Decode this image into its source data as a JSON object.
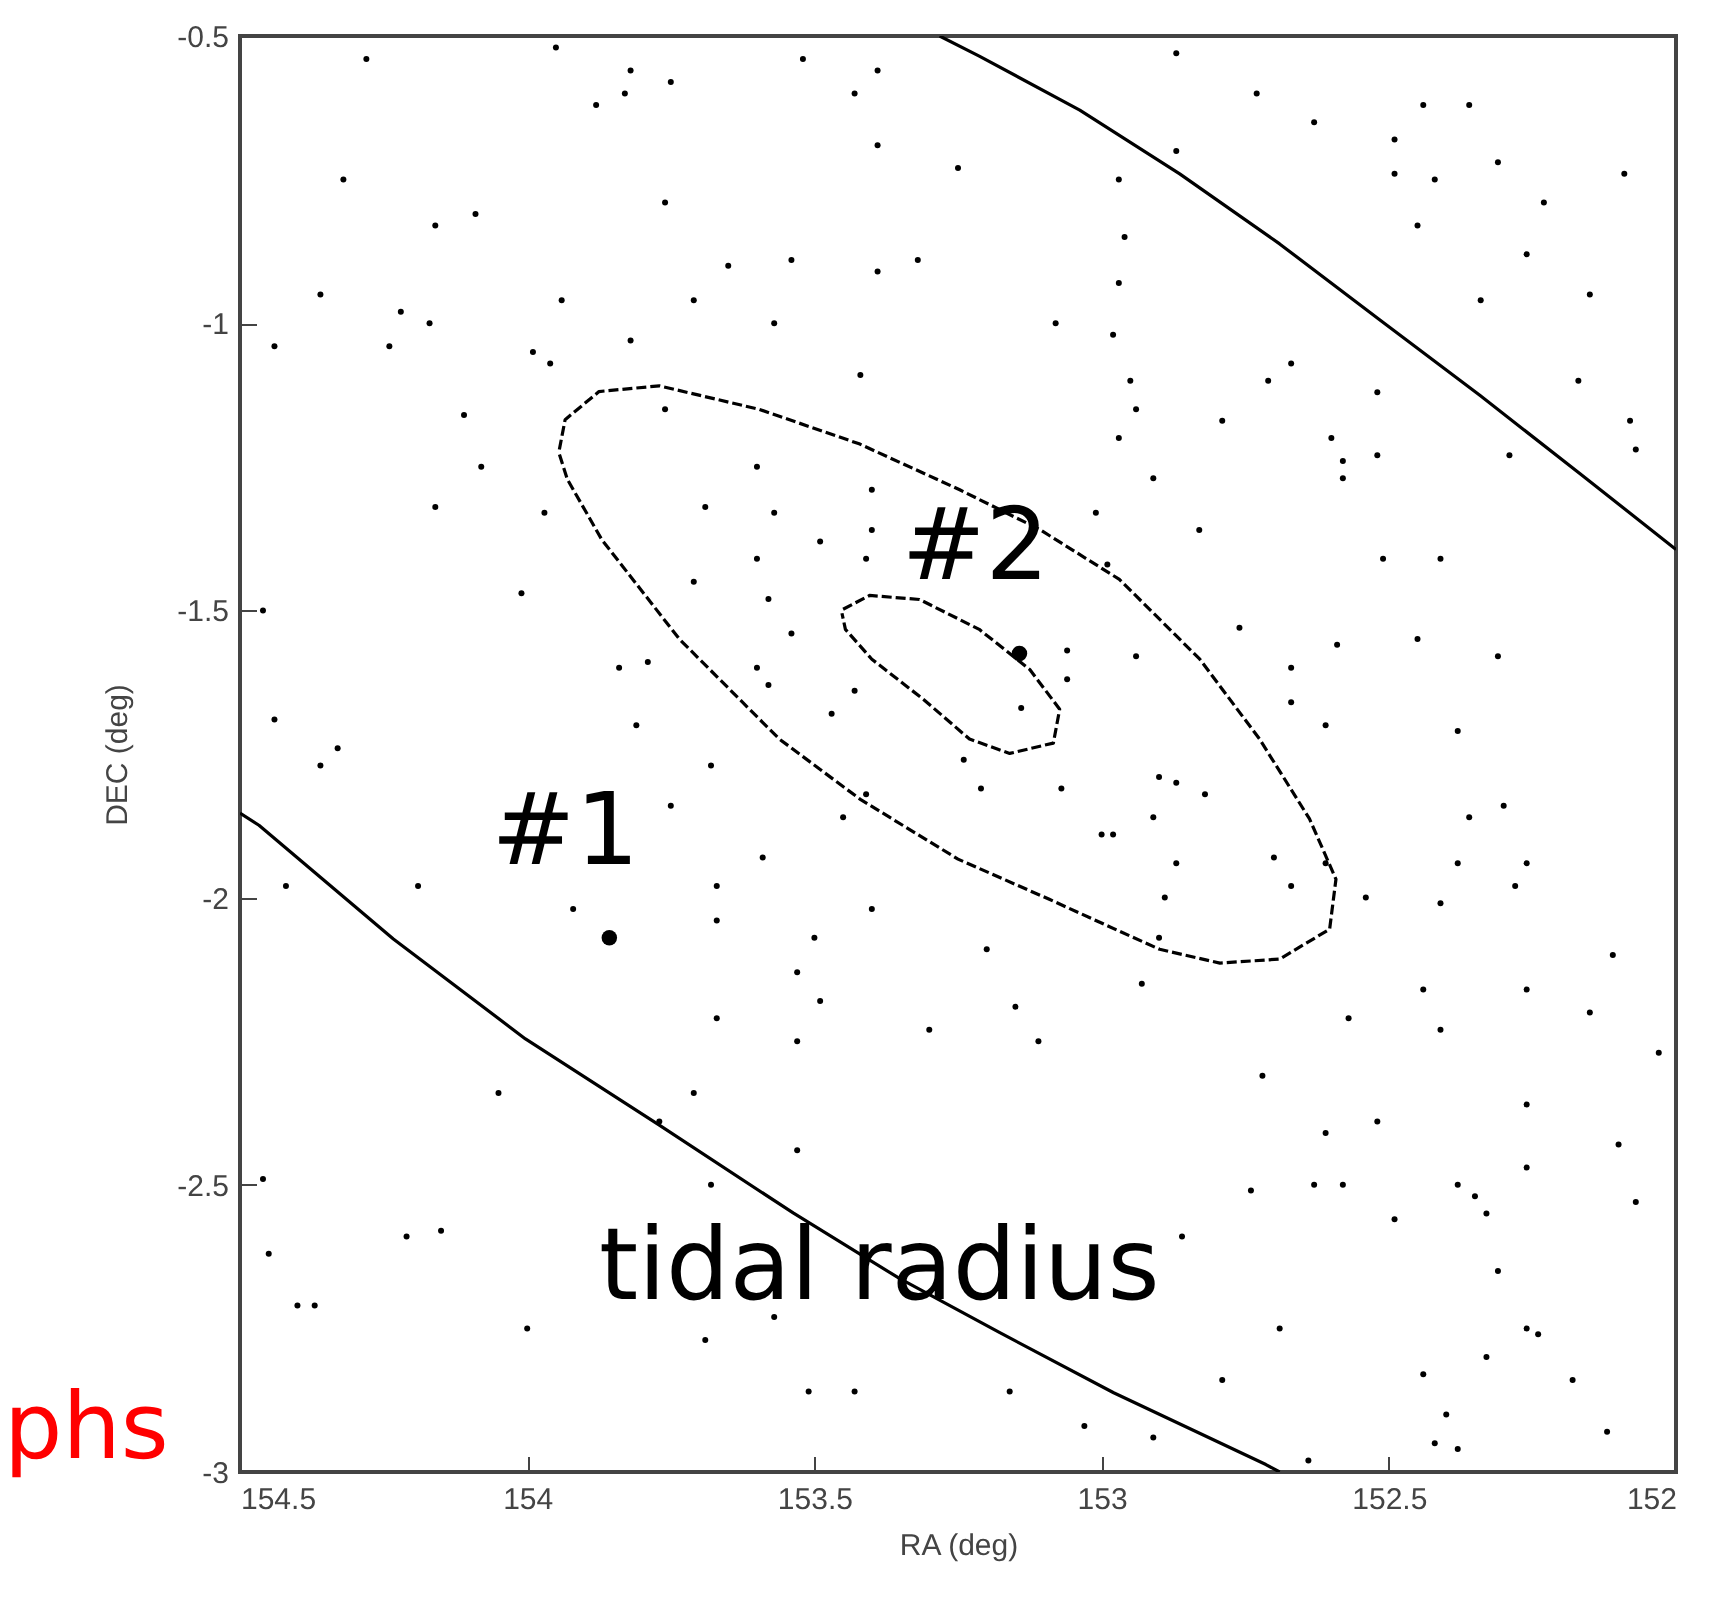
{
  "chart_data": {
    "type": "scatter",
    "xlabel": "RA (deg)",
    "ylabel": "DEC (deg)",
    "xlim": [
      154.5,
      152
    ],
    "ylim": [
      -3,
      -0.5
    ],
    "xticks": [
      154.5,
      154,
      153.5,
      153,
      152.5,
      152
    ],
    "yticks": [
      -3,
      -2.5,
      -2,
      -1.5,
      -1,
      -0.5
    ],
    "series": [
      {
        "marker": "circle",
        "color": "#000000",
        "x": [
          154.28,
          153.95,
          153.52,
          153.82,
          153.83,
          153.88,
          153.75,
          153.43,
          153.39,
          153.39,
          153.25,
          154.32,
          154.09,
          154.16,
          153.76,
          153.54,
          153.39,
          153.32,
          153.65,
          153.71,
          153.94,
          154.36,
          154.22,
          154.17,
          154.24,
          154.44,
          153.99,
          153.96,
          153.82,
          153.57,
          153.42,
          153.76,
          154.11,
          154.08,
          154.16,
          153.97,
          153.6,
          153.69,
          153.57,
          153.4,
          153.4,
          153.49,
          153.6,
          153.71,
          153.58,
          153.41,
          154.01,
          154.46,
          153.54,
          153.6,
          153.58,
          153.79,
          153.84,
          153.81,
          154.44,
          153.47,
          153.43,
          152.87,
          152.73,
          152.63,
          152.44,
          152.36,
          152.87,
          152.97,
          152.49,
          152.49,
          152.42,
          152.31,
          152.09,
          152.23,
          152.96,
          152.45,
          152.26,
          152.97,
          152.34,
          152.15,
          153.08,
          152.98,
          152.71,
          152.67,
          152.95,
          152.52,
          152.17,
          152.94,
          152.79,
          152.97,
          152.6,
          152.58,
          152.52,
          152.58,
          152.29,
          152.08,
          152.07,
          152.91,
          153.01,
          152.83,
          152.99,
          152.51,
          152.41,
          152.76,
          152.59,
          152.45,
          152.31,
          152.94,
          152.67,
          152.67,
          152.61,
          152.38,
          153.06,
          153.06,
          153.14,
          154.36,
          154.33,
          153.68,
          153.75,
          153.24,
          153.21,
          153.41,
          153.45,
          154.42,
          154.19,
          153.92,
          153.59,
          153.67,
          153.67,
          153.4,
          153.5,
          153.53,
          153.49,
          153.2,
          153.3,
          153.67,
          153.53,
          154.05,
          153.71,
          153.77,
          153.53,
          153.68,
          154.46,
          154.15,
          154.21,
          154.45,
          154.4,
          154.37,
          154.0,
          153.69,
          153.57,
          153.51,
          153.43,
          153.07,
          152.87,
          152.82,
          152.9,
          152.91,
          153.0,
          152.98,
          152.87,
          152.89,
          152.7,
          152.67,
          152.61,
          152.54,
          152.36,
          152.3,
          152.38,
          152.26,
          152.28,
          152.41,
          152.9,
          152.93,
          153.15,
          153.11,
          152.11,
          152.44,
          152.26,
          152.41,
          152.15,
          152.57,
          152.72,
          152.03,
          152.26,
          152.52,
          152.61,
          152.1,
          152.26,
          152.74,
          152.63,
          152.58,
          152.38,
          152.35,
          152.33,
          152.49,
          152.07,
          152.86,
          152.31,
          152.26,
          152.24,
          152.69,
          152.33,
          152.18,
          152.44,
          152.79,
          152.4,
          153.16,
          153.03,
          152.91,
          152.64,
          152.42,
          152.38,
          152.12
        ],
        "values": [
          -0.54,
          -0.52,
          -0.54,
          -0.56,
          -0.6,
          -0.62,
          -0.58,
          -0.6,
          -0.56,
          -0.69,
          -0.73,
          -0.75,
          -0.81,
          -0.83,
          -0.79,
          -0.89,
          -0.91,
          -0.89,
          -0.9,
          -0.96,
          -0.96,
          -0.95,
          -0.98,
          -1.0,
          -1.04,
          -1.04,
          -1.05,
          -1.07,
          -1.03,
          -1.0,
          -1.09,
          -1.15,
          -1.16,
          -1.25,
          -1.32,
          -1.33,
          -1.25,
          -1.32,
          -1.33,
          -1.29,
          -1.36,
          -1.38,
          -1.41,
          -1.45,
          -1.48,
          -1.41,
          -1.47,
          -1.5,
          -1.54,
          -1.6,
          -1.63,
          -1.59,
          -1.6,
          -1.7,
          -1.69,
          -1.68,
          -1.64,
          -0.53,
          -0.6,
          -0.65,
          -0.62,
          -0.62,
          -0.7,
          -0.75,
          -0.68,
          -0.74,
          -0.75,
          -0.72,
          -0.74,
          -0.79,
          -0.85,
          -0.83,
          -0.88,
          -0.93,
          -0.96,
          -0.95,
          -1.0,
          -1.02,
          -1.1,
          -1.07,
          -1.1,
          -1.12,
          -1.1,
          -1.15,
          -1.17,
          -1.2,
          -1.2,
          -1.24,
          -1.23,
          -1.27,
          -1.23,
          -1.17,
          -1.22,
          -1.27,
          -1.33,
          -1.36,
          -1.42,
          -1.41,
          -1.41,
          -1.53,
          -1.56,
          -1.55,
          -1.58,
          -1.58,
          -1.6,
          -1.66,
          -1.7,
          -1.71,
          -1.57,
          -1.62,
          -1.67,
          -1.77,
          -1.74,
          -1.77,
          -1.84,
          -1.76,
          -1.81,
          -1.82,
          -1.86,
          -1.98,
          -1.98,
          -2.02,
          -1.93,
          -1.98,
          -2.04,
          -2.02,
          -2.07,
          -2.13,
          -2.18,
          -2.09,
          -2.23,
          -2.21,
          -2.25,
          -2.34,
          -2.34,
          -2.39,
          -2.44,
          -2.5,
          -2.49,
          -2.58,
          -2.59,
          -2.62,
          -2.71,
          -2.71,
          -2.75,
          -2.77,
          -2.73,
          -2.86,
          -2.86,
          -1.81,
          -1.8,
          -1.82,
          -1.79,
          -1.86,
          -1.89,
          -1.89,
          -1.94,
          -2.0,
          -1.93,
          -1.98,
          -1.94,
          -2.0,
          -1.86,
          -1.84,
          -1.94,
          -1.94,
          -1.98,
          -2.01,
          -2.07,
          -2.15,
          -2.19,
          -2.25,
          -2.1,
          -2.16,
          -2.16,
          -2.23,
          -2.2,
          -2.21,
          -2.31,
          -2.27,
          -2.36,
          -2.39,
          -2.41,
          -2.43,
          -2.47,
          -2.51,
          -2.5,
          -2.5,
          -2.5,
          -2.52,
          -2.55,
          -2.56,
          -2.53,
          -2.59,
          -2.65,
          -2.75,
          -2.76,
          -2.75,
          -2.8,
          -2.84,
          -2.83,
          -2.84,
          -2.9,
          -2.86,
          -2.92,
          -2.94,
          -2.98,
          -2.95,
          -2.96,
          -2.93
        ]
      },
      {
        "type": "scatter",
        "marker": "circle",
        "color": "#000000",
        "x": [
          153.857,
          153.143
        ],
        "values": [
          -2.07,
          -1.575
        ]
      },
      {
        "type": "line",
        "marker": "none",
        "line_style": "solid",
        "color": "#000000",
        "x": [
          153.282,
          153.213,
          153.038,
          152.864,
          152.69,
          152.516,
          152.341,
          152.167,
          152.0
        ],
        "values": [
          -0.5,
          -0.535,
          -0.629,
          -0.74,
          -0.862,
          -0.994,
          -1.126,
          -1.262,
          -1.394
        ]
      },
      {
        "type": "line",
        "marker": "none",
        "line_style": "solid",
        "color": "#000000",
        "x": [
          154.5,
          154.467,
          154.233,
          154.003,
          153.77,
          153.537,
          153.352,
          153.178,
          152.979,
          152.714,
          152.69
        ],
        "values": [
          -1.853,
          -1.874,
          -2.072,
          -2.246,
          -2.396,
          -2.549,
          -2.663,
          -2.757,
          -2.862,
          -2.987,
          -3.0
        ]
      },
      {
        "type": "line",
        "marker": "none",
        "line_style": "dashed",
        "color": "#000000",
        "x": [
          153.944,
          153.934,
          153.875,
          153.77,
          153.596,
          153.422,
          153.247,
          153.108,
          152.969,
          152.829,
          152.725,
          152.638,
          152.592,
          152.603,
          152.69,
          152.794,
          152.899,
          152.97,
          153.091,
          153.25,
          153.42,
          153.561,
          153.735,
          153.87,
          153.93,
          153.945
        ],
        "values": [
          -1.22,
          -1.168,
          -1.119,
          -1.109,
          -1.15,
          -1.21,
          -1.29,
          -1.359,
          -1.446,
          -1.585,
          -1.724,
          -1.863,
          -1.968,
          -2.055,
          -2.107,
          -2.114,
          -2.09,
          -2.058,
          -2.003,
          -1.933,
          -1.829,
          -1.724,
          -1.55,
          -1.377,
          -1.272,
          -1.225
        ]
      },
      {
        "type": "line",
        "marker": "none",
        "line_style": "dashed",
        "color": "#000000",
        "x": [
          153.45,
          153.404,
          153.317,
          153.213,
          153.125,
          153.073,
          153.084,
          153.16,
          153.23,
          153.31,
          153.4,
          153.446,
          153.452
        ],
        "values": [
          -1.498,
          -1.474,
          -1.481,
          -1.533,
          -1.603,
          -1.672,
          -1.731,
          -1.749,
          -1.724,
          -1.655,
          -1.585,
          -1.533,
          -1.505
        ]
      }
    ],
    "annotations": [
      {
        "text": "#1",
        "x": 153.857,
        "y": -2.07
      },
      {
        "text": "#2",
        "x": 153.143,
        "y": -1.575
      },
      {
        "text": "tidal radius",
        "x": 153.387,
        "y": -2.646
      },
      "phs"
    ]
  }
}
